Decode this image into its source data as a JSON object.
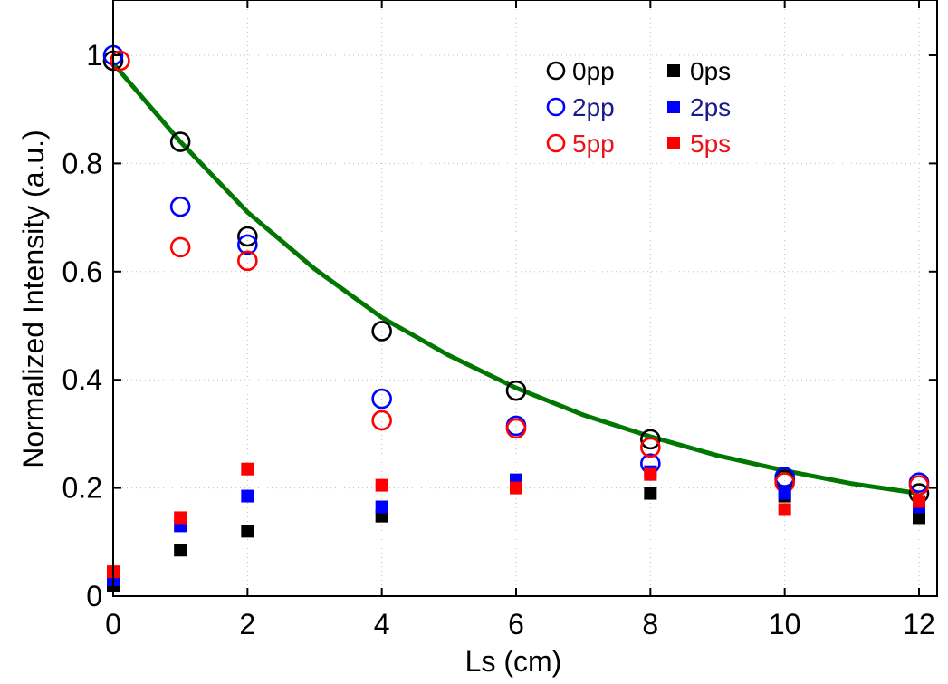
{
  "chart_data": {
    "type": "scatter",
    "xlabel": "Ls (cm)",
    "ylabel": "Normalized Intensity (a.u.)",
    "xlim": [
      0,
      12
    ],
    "ylim": [
      0,
      1.1
    ],
    "x_ticks": [
      0,
      2,
      4,
      6,
      8,
      10,
      12
    ],
    "y_ticks": [
      0,
      0.2,
      0.4,
      0.6,
      0.8,
      1
    ],
    "x_tick_labels": [
      "0",
      "2",
      "4",
      "6",
      "8",
      "10",
      "12"
    ],
    "y_tick_labels": [
      "0",
      "0.2",
      "0.4",
      "0.6",
      "0.8",
      "1"
    ],
    "grid": true,
    "legend_position": "top-right",
    "series": [
      {
        "name": "0pp",
        "marker": "open-circle",
        "color": "#000000",
        "x": [
          0,
          1,
          2,
          4,
          6,
          8,
          10,
          12
        ],
        "y": [
          0.99,
          0.84,
          0.665,
          0.49,
          0.38,
          0.29,
          0.215,
          0.19
        ]
      },
      {
        "name": "2pp",
        "marker": "open-circle",
        "color": "#0000ff",
        "x": [
          0,
          1,
          2,
          4,
          6,
          8,
          10,
          12
        ],
        "y": [
          1.0,
          0.72,
          0.65,
          0.365,
          0.315,
          0.245,
          0.22,
          0.21
        ]
      },
      {
        "name": "5pp",
        "marker": "open-circle",
        "color": "#ff0000",
        "x": [
          0.1,
          1,
          2,
          4,
          6,
          8,
          10,
          12
        ],
        "y": [
          0.99,
          0.645,
          0.62,
          0.325,
          0.31,
          0.275,
          0.21,
          0.205
        ]
      },
      {
        "name": "0ps",
        "marker": "filled-square",
        "color": "#000000",
        "x": [
          0,
          1,
          2,
          4,
          6,
          8,
          10,
          12
        ],
        "y": [
          0.02,
          0.085,
          0.12,
          0.148,
          0.21,
          0.19,
          0.185,
          0.145
        ]
      },
      {
        "name": "2ps",
        "marker": "filled-square",
        "color": "#0000ff",
        "x": [
          0,
          1,
          2,
          4,
          6,
          8,
          10,
          12
        ],
        "y": [
          0.03,
          0.13,
          0.185,
          0.165,
          0.215,
          0.23,
          0.19,
          0.165
        ]
      },
      {
        "name": "5ps",
        "marker": "filled-square",
        "color": "#ff0000",
        "x": [
          0,
          1,
          2,
          4,
          6,
          8,
          10,
          12
        ],
        "y": [
          0.045,
          0.145,
          0.235,
          0.205,
          0.2,
          0.225,
          0.16,
          0.175
        ]
      }
    ],
    "fit_curve": {
      "color": "#007700",
      "x": [
        0,
        1,
        2,
        3,
        4,
        5,
        6,
        7,
        8,
        9,
        10,
        11,
        12
      ],
      "y": [
        0.985,
        0.84,
        0.71,
        0.605,
        0.515,
        0.445,
        0.385,
        0.335,
        0.295,
        0.26,
        0.232,
        0.208,
        0.19
      ]
    }
  }
}
